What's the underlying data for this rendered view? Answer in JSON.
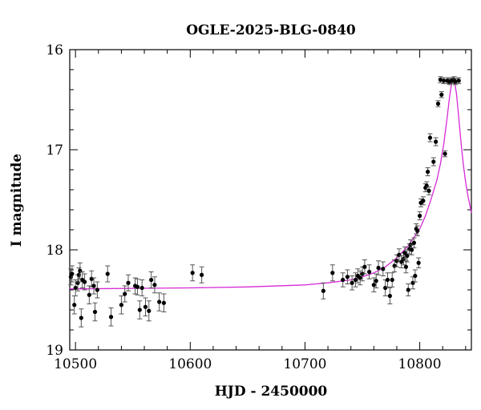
{
  "chart_data": {
    "type": "scatter",
    "title": "OGLE-2025-BLG-0840",
    "xlabel": "HJD - 2450000",
    "ylabel": "I magnitude",
    "xlim": [
      10495,
      10845
    ],
    "ylim": [
      16.0,
      19.0
    ],
    "y_inverted": true,
    "x_ticks": [
      10500,
      10600,
      10700,
      10800
    ],
    "y_ticks": [
      16,
      17,
      18,
      19
    ],
    "model_color": "#d62ad6",
    "point_color": "#000000",
    "errorbar_color": "#555555",
    "model_curve": {
      "name": "",
      "x": [
        10495,
        10550,
        10600,
        10650,
        10700,
        10720,
        10740,
        10750,
        10760,
        10770,
        10780,
        10790,
        10800,
        10805,
        10810,
        10815,
        10818,
        10821,
        10824,
        10826,
        10828,
        10830,
        10832,
        10834,
        10836,
        10838,
        10840,
        10842,
        10845
      ],
      "y": [
        18.39,
        18.385,
        18.38,
        18.37,
        18.35,
        18.33,
        18.3,
        18.27,
        18.23,
        18.17,
        18.08,
        17.96,
        17.79,
        17.66,
        17.49,
        17.3,
        17.14,
        16.94,
        16.67,
        16.47,
        16.32,
        16.3,
        16.44,
        16.68,
        16.93,
        17.15,
        17.32,
        17.46,
        17.63
      ]
    },
    "series": [
      {
        "name": "",
        "x": [
          10496,
          10497,
          10499,
          10500,
          10502,
          10503,
          10504,
          10505,
          10506,
          10508,
          10512,
          10514,
          10516,
          10517,
          10519,
          10528,
          10531,
          10540,
          10543,
          10546,
          10552,
          10554,
          10556,
          10558,
          10561,
          10564,
          10566,
          10569,
          10573,
          10577,
          10602,
          10610,
          10716,
          10724,
          10733,
          10737,
          10741,
          10744,
          10746,
          10748,
          10750,
          10752,
          10756,
          10760,
          10762,
          10764,
          10768,
          10770,
          10772,
          10774,
          10776,
          10778,
          10780,
          10782,
          10784,
          10786,
          10787,
          10788,
          10789,
          10790,
          10791,
          10792,
          10793,
          10794,
          10795,
          10796,
          10797,
          10798,
          10799,
          10800,
          10801,
          10803,
          10805,
          10806,
          10807,
          10808,
          10809,
          10812,
          10814,
          10816,
          10818,
          10819,
          10821,
          10822,
          10824,
          10826,
          10828,
          10830,
          10831,
          10834
        ],
        "y": [
          18.27,
          18.24,
          18.55,
          18.38,
          18.33,
          18.25,
          18.21,
          18.68,
          18.3,
          18.32,
          18.45,
          18.29,
          18.36,
          18.62,
          18.4,
          18.24,
          18.67,
          18.55,
          18.44,
          18.33,
          18.36,
          18.37,
          18.6,
          18.38,
          18.57,
          18.61,
          18.3,
          18.35,
          18.52,
          18.53,
          18.23,
          18.25,
          18.41,
          18.23,
          18.3,
          18.27,
          18.33,
          18.3,
          18.26,
          18.28,
          18.24,
          18.17,
          18.22,
          18.35,
          18.31,
          18.18,
          18.19,
          18.38,
          18.3,
          18.46,
          18.3,
          18.16,
          18.11,
          18.05,
          18.12,
          18.09,
          18.03,
          18.17,
          18.06,
          18.4,
          17.99,
          17.95,
          18.0,
          18.33,
          17.93,
          18.26,
          17.79,
          17.81,
          18.13,
          17.66,
          17.53,
          17.51,
          17.38,
          17.36,
          17.22,
          17.41,
          16.88,
          17.12,
          16.92,
          16.54,
          16.3,
          16.45,
          16.31,
          17.04,
          16.31,
          16.32,
          16.31,
          16.3,
          16.32,
          16.31
        ],
        "err": [
          0.08,
          0.08,
          0.09,
          0.08,
          0.08,
          0.07,
          0.08,
          0.09,
          0.08,
          0.08,
          0.09,
          0.08,
          0.08,
          0.09,
          0.08,
          0.08,
          0.09,
          0.09,
          0.08,
          0.08,
          0.08,
          0.08,
          0.09,
          0.08,
          0.09,
          0.1,
          0.08,
          0.08,
          0.09,
          0.09,
          0.08,
          0.08,
          0.08,
          0.08,
          0.07,
          0.07,
          0.07,
          0.07,
          0.07,
          0.07,
          0.07,
          0.07,
          0.07,
          0.07,
          0.07,
          0.07,
          0.07,
          0.08,
          0.07,
          0.08,
          0.07,
          0.06,
          0.06,
          0.06,
          0.06,
          0.06,
          0.06,
          0.06,
          0.06,
          0.06,
          0.05,
          0.05,
          0.05,
          0.06,
          0.05,
          0.06,
          0.05,
          0.05,
          0.05,
          0.04,
          0.04,
          0.04,
          0.04,
          0.04,
          0.04,
          0.04,
          0.04,
          0.04,
          0.04,
          0.03,
          0.03,
          0.03,
          0.03,
          0.03,
          0.03,
          0.03,
          0.03,
          0.03,
          0.03,
          0.03
        ]
      }
    ]
  }
}
